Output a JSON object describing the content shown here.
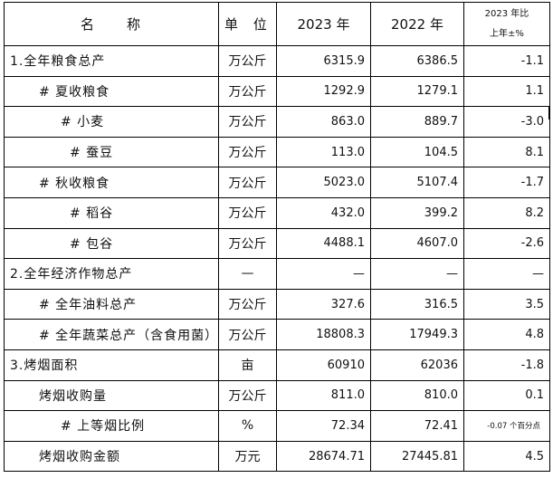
{
  "table": {
    "headers": {
      "name": "名　　称",
      "unit": "单 位",
      "year2023": "2023 年",
      "year2022": "2022 年",
      "change_line1": "2023 年比",
      "change_line2": "上年±%"
    },
    "rows": [
      {
        "name": "1.全年粮食总产",
        "unit": "万公斤",
        "v2023": "6315.9",
        "v2022": "6386.5",
        "change": "-1.1"
      },
      {
        "name": "# 夏收粮食",
        "unit": "万公斤",
        "v2023": "1292.9",
        "v2022": "1279.1",
        "change": "1.1"
      },
      {
        "name": "# 小麦",
        "unit": "万公斤",
        "v2023": "863.0",
        "v2022": "889.7",
        "change": "-3.0"
      },
      {
        "name": "# 蚕豆",
        "unit": "万公斤",
        "v2023": "113.0",
        "v2022": "104.5",
        "change": "8.1"
      },
      {
        "name": "# 秋收粮食",
        "unit": "万公斤",
        "v2023": "5023.0",
        "v2022": "5107.4",
        "change": "-1.7"
      },
      {
        "name": "# 稻谷",
        "unit": "万公斤",
        "v2023": "432.0",
        "v2022": "399.2",
        "change": "8.2"
      },
      {
        "name": "# 包谷",
        "unit": "万公斤",
        "v2023": "4488.1",
        "v2022": "4607.0",
        "change": "-2.6"
      },
      {
        "name": "2.全年经济作物总产",
        "unit": "—",
        "v2023": "—",
        "v2022": "—",
        "change": "—"
      },
      {
        "name": "# 全年油料总产",
        "unit": "万公斤",
        "v2023": "327.6",
        "v2022": "316.5",
        "change": "3.5"
      },
      {
        "name": "# 全年蔬菜总产（含食用菌）",
        "unit": "万公斤",
        "v2023": "18808.3",
        "v2022": "17949.3",
        "change": "4.8"
      },
      {
        "name": "3.烤烟面积",
        "unit": "亩",
        "v2023": "60910",
        "v2022": "62036",
        "change": "-1.8"
      },
      {
        "name": "烤烟收购量",
        "unit": "万公斤",
        "v2023": "811.0",
        "v2022": "810.0",
        "change": "0.1"
      },
      {
        "name": "# 上等烟比例",
        "unit": "%",
        "v2023": "72.34",
        "v2022": "72.41",
        "change": "-0.07 个百分点"
      },
      {
        "name": "烤烟收购金额",
        "unit": "万元",
        "v2023": "28674.71",
        "v2022": "27445.81",
        "change": "4.5"
      }
    ]
  }
}
